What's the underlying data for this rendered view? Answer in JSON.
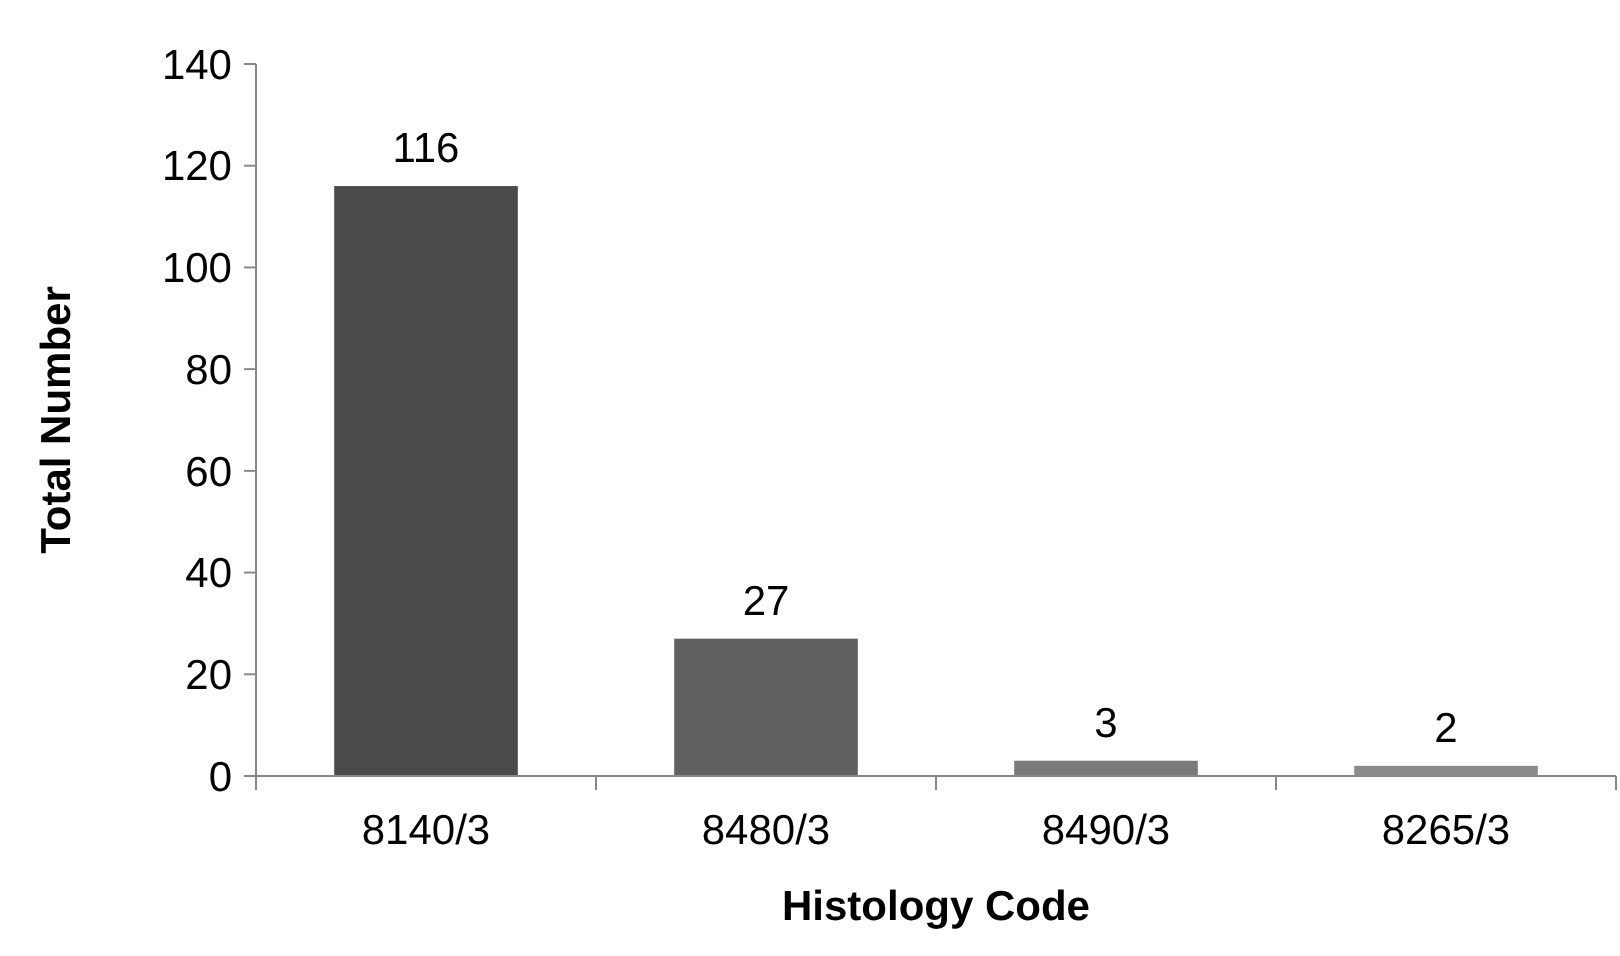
{
  "chart_data": {
    "type": "bar",
    "xlabel": "Histology Code",
    "ylabel": "Total Number",
    "categories": [
      "8140/3",
      "8480/3",
      "8490/3",
      "8265/3"
    ],
    "values": [
      116,
      27,
      3,
      2
    ],
    "colors": [
      "#4a4a4a",
      "#606060",
      "#7a7a7a",
      "#8a8a8a"
    ],
    "ylim": [
      0,
      140
    ],
    "yticks": [
      0,
      20,
      40,
      60,
      80,
      100,
      120,
      140
    ],
    "data_labels": true,
    "grid": false
  }
}
